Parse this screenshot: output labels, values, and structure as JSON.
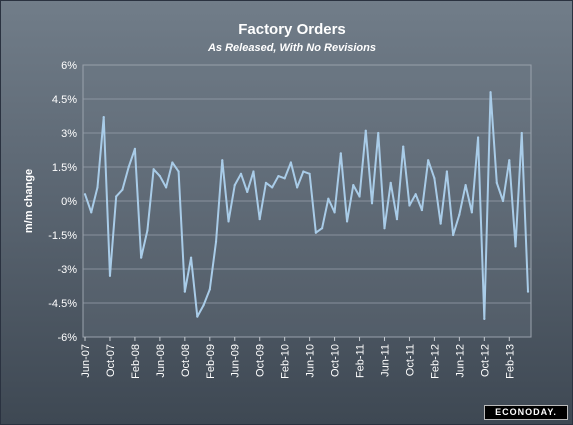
{
  "chart_data": {
    "type": "line",
    "title": "Factory Orders",
    "subtitle": "As Released, With No Revisions",
    "ylabel": "m/m change",
    "xlabel": "",
    "ylim": [
      -6,
      6
    ],
    "y_ticks": [
      "6%",
      "4.5%",
      "3%",
      "1.5%",
      "0%",
      "-1.5%",
      "-3%",
      "-4.5%",
      "-6%"
    ],
    "x_tick_labels": [
      "Jun-07",
      "Oct-07",
      "Feb-08",
      "Jun-08",
      "Oct-08",
      "Feb-09",
      "Jun-09",
      "Oct-09",
      "Feb-10",
      "Jun-10",
      "Oct-10",
      "Feb-11",
      "Jun-11",
      "Oct-11",
      "Feb-12",
      "Jun-12",
      "Oct-12",
      "Feb-13"
    ],
    "grid": true,
    "line_color": "#a9cce8",
    "series": [
      {
        "x": [
          "Jun-07",
          "Jul-07",
          "Aug-07",
          "Sep-07",
          "Oct-07",
          "Nov-07",
          "Dec-07",
          "Jan-08",
          "Feb-08",
          "Mar-08",
          "Apr-08",
          "May-08",
          "Jun-08",
          "Jul-08",
          "Aug-08",
          "Sep-08",
          "Oct-08",
          "Nov-08",
          "Dec-08",
          "Jan-09",
          "Feb-09",
          "Mar-09",
          "Apr-09",
          "May-09",
          "Jun-09",
          "Jul-09",
          "Aug-09",
          "Sep-09",
          "Oct-09",
          "Nov-09",
          "Dec-09",
          "Jan-10",
          "Feb-10",
          "Mar-10",
          "Apr-10",
          "May-10",
          "Jun-10",
          "Jul-10",
          "Aug-10",
          "Sep-10",
          "Oct-10",
          "Nov-10",
          "Dec-10",
          "Jan-11",
          "Feb-11",
          "Mar-11",
          "Apr-11",
          "May-11",
          "Jun-11",
          "Jul-11",
          "Aug-11",
          "Sep-11",
          "Oct-11",
          "Nov-11",
          "Dec-11",
          "Jan-12",
          "Feb-12",
          "Mar-12",
          "Apr-12",
          "May-12",
          "Jun-12",
          "Jul-12",
          "Aug-12",
          "Sep-12",
          "Oct-12",
          "Nov-12",
          "Dec-12",
          "Jan-13",
          "Feb-13",
          "Mar-13",
          "Apr-13",
          "May-13"
        ],
        "values": [
          0.3,
          -0.5,
          0.6,
          3.7,
          -3.3,
          0.2,
          0.5,
          1.5,
          2.3,
          -2.5,
          -1.3,
          1.4,
          1.1,
          0.6,
          1.7,
          1.3,
          -4.0,
          -2.5,
          -5.1,
          -4.6,
          -3.9,
          -1.8,
          1.8,
          -0.9,
          0.7,
          1.2,
          0.4,
          1.3,
          -0.8,
          0.8,
          0.6,
          1.1,
          1.0,
          1.7,
          0.6,
          1.3,
          1.2,
          -1.4,
          -1.2,
          0.1,
          -0.5,
          2.1,
          -0.9,
          0.7,
          0.2,
          3.1,
          -0.1,
          3.0,
          -1.2,
          0.8,
          -0.8,
          2.4,
          -0.2,
          0.3,
          -0.4,
          1.8,
          1.0,
          -1.0,
          1.3,
          -1.5,
          -0.6,
          0.7,
          -0.5,
          2.8,
          -5.2,
          4.8,
          0.8,
          0.0,
          1.8,
          -2.0,
          3.0,
          -4.0
        ]
      }
    ]
  },
  "brand": {
    "label": "ECONODAY."
  }
}
